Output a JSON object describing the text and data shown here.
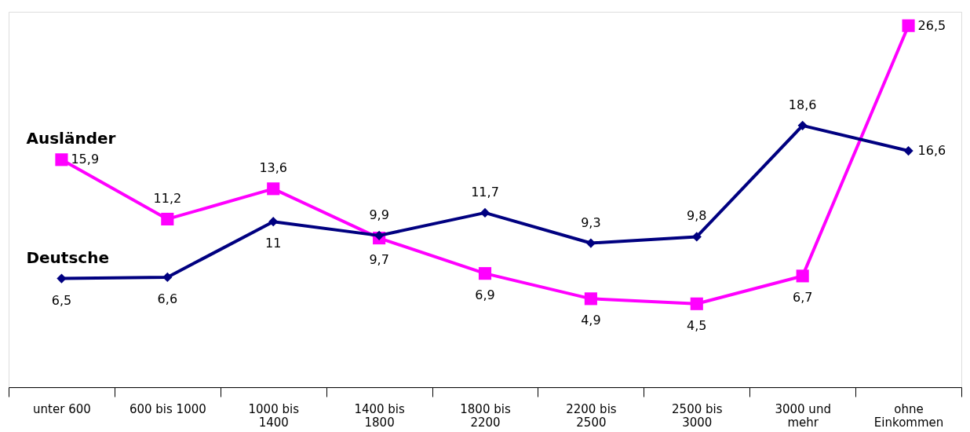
{
  "chart_data": {
    "type": "line",
    "categories": [
      "unter 600",
      "600 bis 1000",
      "1000 bis 1400",
      "1400 bis 1800",
      "1800 bis 2200",
      "2200 bis 2500",
      "2500 bis 3000",
      "3000 und mehr",
      "ohne Einkommen"
    ],
    "series": [
      {
        "name": "Deutsche",
        "color": "#000080",
        "marker": "diamond",
        "values": [
          6.5,
          6.6,
          11,
          9.9,
          11.7,
          9.3,
          9.8,
          18.6,
          16.6
        ],
        "value_labels": [
          "6,5",
          "6,6",
          "11",
          "9,9",
          "11,7",
          "9,3",
          "9,8",
          "18,6",
          "16,6"
        ]
      },
      {
        "name": "Ausländer",
        "color": "#ff00ff",
        "marker": "square",
        "values": [
          15.9,
          11.2,
          13.6,
          9.7,
          6.9,
          4.9,
          4.5,
          6.7,
          26.5
        ],
        "value_labels": [
          "15,9",
          "11,2",
          "13,6",
          "9,7",
          "6,9",
          "4,9",
          "4,5",
          "6,7",
          "26,5"
        ]
      }
    ],
    "grid": false,
    "tick_labels": "x",
    "line_style": "solid"
  }
}
